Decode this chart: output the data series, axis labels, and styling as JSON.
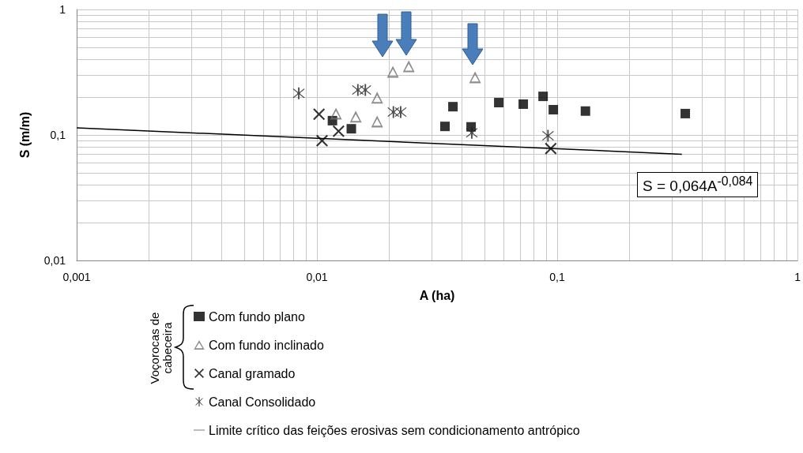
{
  "chart_data": {
    "type": "scatter",
    "xlabel": "A (ha)",
    "ylabel": "S (m/m)",
    "legend_title": "Voçorocas de cabeceira",
    "log": "xy",
    "grid": true,
    "legend": "bottom",
    "xlim": [
      0.001,
      1
    ],
    "ylim": [
      0.01,
      1
    ],
    "xticks": [
      {
        "value": 0.001,
        "label": "0,001"
      },
      {
        "value": 0.002,
        "label": null
      },
      {
        "value": 0.003,
        "label": null
      },
      {
        "value": 0.004,
        "label": null
      },
      {
        "value": 0.005,
        "label": null
      },
      {
        "value": 0.006,
        "label": null
      },
      {
        "value": 0.007,
        "label": null
      },
      {
        "value": 0.008,
        "label": null
      },
      {
        "value": 0.009,
        "label": null
      },
      {
        "value": 0.01,
        "label": "0,01"
      },
      {
        "value": 0.02,
        "label": null
      },
      {
        "value": 0.03,
        "label": null
      },
      {
        "value": 0.04,
        "label": null
      },
      {
        "value": 0.05,
        "label": null
      },
      {
        "value": 0.06,
        "label": null
      },
      {
        "value": 0.07,
        "label": null
      },
      {
        "value": 0.08,
        "label": null
      },
      {
        "value": 0.09,
        "label": null
      },
      {
        "value": 0.1,
        "label": "0,1"
      },
      {
        "value": 0.2,
        "label": null
      },
      {
        "value": 0.3,
        "label": null
      },
      {
        "value": 0.4,
        "label": null
      },
      {
        "value": 0.5,
        "label": null
      },
      {
        "value": 0.6,
        "label": null
      },
      {
        "value": 0.7,
        "label": null
      },
      {
        "value": 0.8,
        "label": null
      },
      {
        "value": 0.9,
        "label": null
      },
      1
    ],
    "yticks": [
      {
        "value": 0.01,
        "label": "0,01"
      },
      {
        "value": 0.02,
        "label": null
      },
      {
        "value": 0.03,
        "label": null
      },
      {
        "value": 0.04,
        "label": null
      },
      {
        "value": 0.05,
        "label": null
      },
      {
        "value": 0.06,
        "label": null
      },
      {
        "value": 0.07,
        "label": null
      },
      {
        "value": 0.08,
        "label": null
      },
      {
        "value": 0.09,
        "label": null
      },
      {
        "value": 0.1,
        "label": "0,1"
      },
      {
        "value": 0.2,
        "label": null
      },
      {
        "value": 0.3,
        "label": null
      },
      {
        "value": 0.4,
        "label": null
      },
      {
        "value": 0.5,
        "label": null
      },
      {
        "value": 0.6,
        "label": null
      },
      {
        "value": 0.7,
        "label": null
      },
      {
        "value": 0.8,
        "label": null
      },
      {
        "value": 0.9,
        "label": null
      },
      1
    ],
    "series": [
      {
        "name": "Com fundo plano",
        "marker": "square",
        "color": "#000000",
        "x": [
          0.0116,
          0.0139,
          0.0341,
          0.0368,
          0.0438,
          0.0571,
          0.0722,
          0.0873,
          0.0963,
          0.131,
          0.341
        ],
        "values": [
          0.13,
          0.112,
          0.117,
          0.168,
          0.116,
          0.181,
          0.176,
          0.203,
          0.159,
          0.155,
          0.148
        ]
      },
      {
        "name": "Com fundo inclinado",
        "marker": "triangle",
        "color": "#707070",
        "x": [
          0.012,
          0.0145,
          0.0178,
          0.0178,
          0.0207,
          0.0241,
          0.0455
        ],
        "values": [
          0.148,
          0.14,
          0.198,
          0.128,
          0.319,
          0.352,
          0.288
        ]
      },
      {
        "name": "Canal gramado",
        "marker": "cross",
        "color": "#000000",
        "x": [
          0.0102,
          0.0105,
          0.0123,
          0.094
        ],
        "values": [
          0.146,
          0.09,
          0.107,
          0.078
        ]
      },
      {
        "name": "Canal Consolidado",
        "marker": "star",
        "color": "#202020",
        "x": [
          0.0084,
          0.0148,
          0.0159,
          0.0208,
          0.0223,
          0.0441,
          0.0915
        ],
        "values": [
          0.215,
          0.228,
          0.228,
          0.152,
          0.152,
          0.104,
          0.0986
        ]
      },
      {
        "name": "Limite crítico das feições erosivas sem condicionamento antrópico",
        "type": "line",
        "marker": "none",
        "line_style": "solid",
        "color": "#000000",
        "x": [
          0.001,
          0.33
        ],
        "values": [
          0.114,
          0.0702
        ]
      }
    ],
    "annotations": [
      "S = 0,064A$^{-0,084}$"
    ]
  }
}
